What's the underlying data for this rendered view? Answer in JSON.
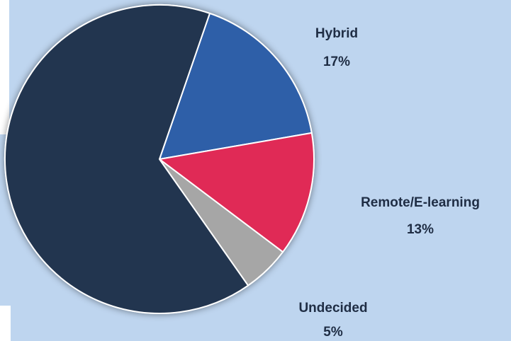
{
  "chart_data": {
    "type": "pie",
    "categories": [
      "Hybrid",
      "Remote/E-learning",
      "Undecided",
      null
    ],
    "values": [
      17,
      13,
      5,
      65
    ],
    "value_labels": [
      "17%",
      "13%",
      "5%",
      null
    ],
    "colors": [
      "#2f5ea8",
      "#e02a56",
      "#a6a6a6",
      "#22344f"
    ]
  }
}
